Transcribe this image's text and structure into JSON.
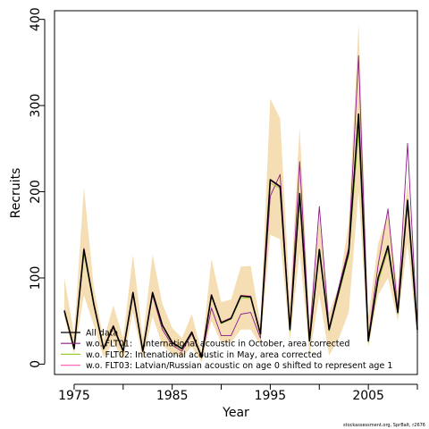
{
  "chart_data": {
    "type": "line",
    "xlabel": "Year",
    "ylabel": "Recruits",
    "xlim": [
      1973,
      2010
    ],
    "ylim": [
      -12,
      410
    ],
    "x_ticks": [
      1975,
      1980,
      1985,
      1990,
      1995,
      2000,
      2005,
      2010
    ],
    "x_tick_labels": [
      "1975",
      "1985",
      "1995",
      "2005"
    ],
    "y_ticks": [
      0,
      100,
      200,
      300,
      400
    ],
    "y_tick_labels": [
      "0",
      "100",
      "200",
      "300",
      "400"
    ],
    "x": [
      1974,
      1975,
      1976,
      1977,
      1978,
      1979,
      1980,
      1981,
      1982,
      1983,
      1984,
      1985,
      1986,
      1987,
      1988,
      1989,
      1990,
      1991,
      1992,
      1993,
      1994,
      1995,
      1996,
      1997,
      1998,
      1999,
      2000,
      2001,
      2002,
      2003,
      2004,
      2005,
      2006,
      2007,
      2008,
      2009,
      2010
    ],
    "band": {
      "color": "#f5deb3",
      "lower": [
        55,
        12,
        80,
        45,
        8,
        25,
        5,
        60,
        5,
        55,
        22,
        12,
        8,
        20,
        2,
        50,
        25,
        25,
        40,
        40,
        22,
        150,
        145,
        28,
        130,
        10,
        80,
        10,
        30,
        60,
        200,
        20,
        80,
        100,
        50,
        140,
        30
      ],
      "upper": [
        100,
        35,
        205,
        90,
        28,
        68,
        30,
        127,
        30,
        127,
        70,
        42,
        30,
        58,
        14,
        122,
        72,
        75,
        113,
        114,
        47,
        308,
        285,
        75,
        275,
        50,
        170,
        60,
        90,
        165,
        395,
        55,
        140,
        175,
        85,
        215,
        50
      ]
    },
    "series": [
      {
        "name": "All data",
        "color": "#000000",
        "width": 1.6,
        "values": [
          62,
          18,
          133,
          70,
          18,
          44,
          15,
          83,
          15,
          83,
          45,
          25,
          18,
          37,
          8,
          80,
          48,
          53,
          79,
          78,
          35,
          214,
          206,
          40,
          198,
          27,
          133,
          40,
          85,
          130,
          290,
          27,
          100,
          137,
          60,
          190,
          40
        ]
      },
      {
        "name": "w.o. FLT01:    International acoustic in October, area corrected",
        "color": "#8b1a8b",
        "width": 0.9,
        "values": [
          62,
          18,
          130,
          68,
          18,
          42,
          15,
          80,
          15,
          80,
          40,
          22,
          15,
          35,
          8,
          65,
          33,
          33,
          58,
          60,
          30,
          195,
          220,
          42,
          235,
          30,
          183,
          42,
          90,
          135,
          358,
          30,
          115,
          180,
          62,
          256,
          38
        ]
      },
      {
        "name": "w.o. FLT02: Intenational acoustic in May, area corrected",
        "color": "#9acd32",
        "width": 0.9,
        "values": [
          60,
          17,
          128,
          68,
          17,
          43,
          14,
          82,
          14,
          82,
          44,
          24,
          17,
          36,
          7,
          78,
          47,
          52,
          77,
          76,
          34,
          210,
          204,
          38,
          192,
          26,
          128,
          38,
          82,
          126,
          270,
          25,
          95,
          132,
          58,
          192,
          39
        ]
      },
      {
        "name": "w.o. FLT03: Latvian/Russian acoustic on age 0 shifted to represent age 1",
        "color": "#ff69b4",
        "width": 0.9,
        "values": [
          63,
          18,
          135,
          71,
          19,
          45,
          16,
          84,
          16,
          84,
          46,
          26,
          18,
          38,
          9,
          81,
          49,
          54,
          80,
          79,
          36,
          213,
          205,
          41,
          195,
          28,
          131,
          41,
          86,
          131,
          285,
          28,
          98,
          135,
          61,
          188,
          41
        ]
      }
    ],
    "legend_position": "bottom-left",
    "grid": false
  },
  "credit": "stockassessment.org, SprBalt, r2676"
}
